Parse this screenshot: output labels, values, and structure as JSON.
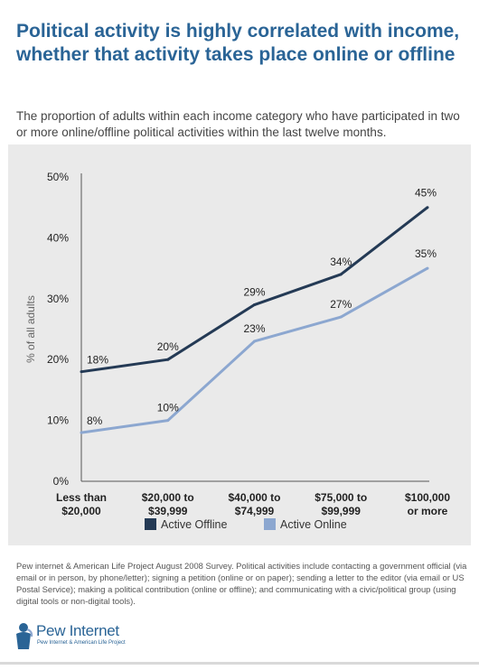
{
  "title": "Political activity is highly correlated with income, whether that activity takes place online or offline",
  "subtitle": "The proportion of adults within each income category who have participated in two or more online/offline political activities within the last twelve months.",
  "footer_note": "Pew internet & American Life Project August 2008 Survey. Political activities include contacting a government official (via email or in person, by phone/letter); signing a petition (online or on paper); sending a letter to the editor (via email or US Postal Service); making a political contribution (online or offline); and communicating with a civic/political group (using digital tools or non-digital tools).",
  "logo": {
    "name": "Pew Internet",
    "tagline": "Pew Internet & American Life Project"
  },
  "colors": {
    "offline": "#243a55",
    "online": "#8ca7d0",
    "title": "#2a6496"
  },
  "chart_data": {
    "type": "line",
    "ylabel": "% of all adults",
    "ylim": [
      0,
      50
    ],
    "yticks": [
      "0%",
      "10%",
      "20%",
      "30%",
      "40%",
      "50%"
    ],
    "categories": [
      [
        "Less than",
        "$20,000"
      ],
      [
        "$20,000 to",
        "$39,999"
      ],
      [
        "$40,000 to",
        "$74,999"
      ],
      [
        "$75,000 to",
        "$99,999"
      ],
      [
        "$100,000",
        "or more"
      ]
    ],
    "series": [
      {
        "name": "Active Offline",
        "values": [
          18,
          20,
          29,
          34,
          45
        ],
        "labels": [
          "18%",
          "20%",
          "29%",
          "34%",
          "45%"
        ]
      },
      {
        "name": "Active Online",
        "values": [
          8,
          10,
          23,
          27,
          35
        ],
        "labels": [
          "8%",
          "10%",
          "23%",
          "27%",
          "35%"
        ]
      }
    ],
    "legend": "bottom-center",
    "grid": false
  }
}
